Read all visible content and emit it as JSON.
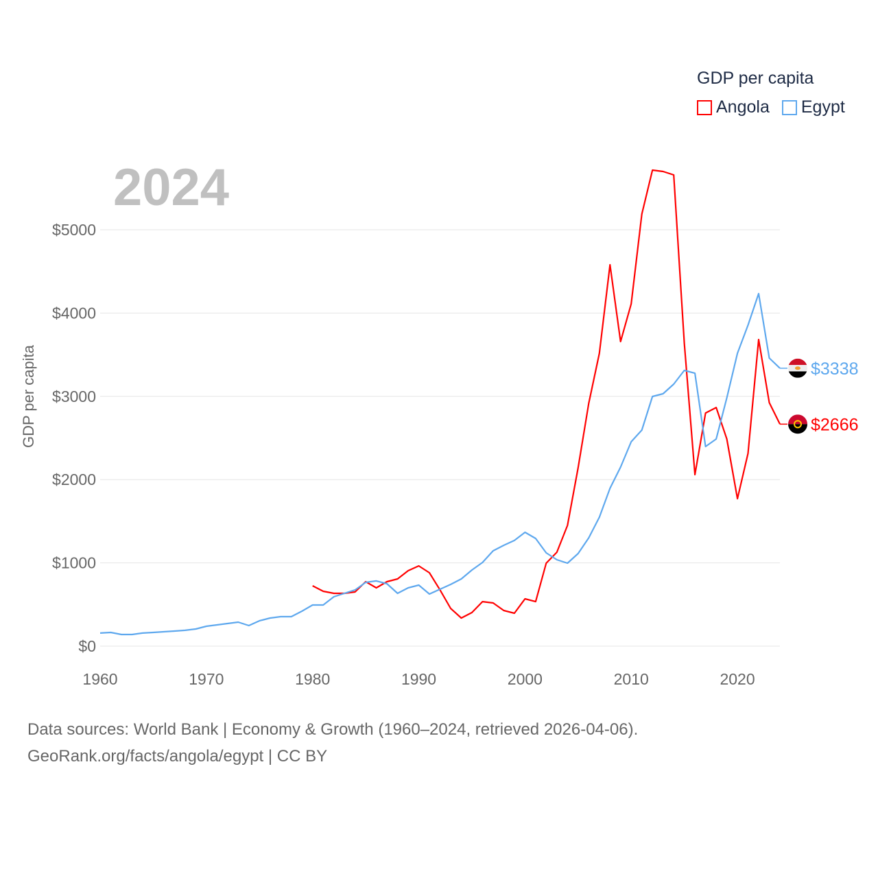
{
  "chart_data": {
    "type": "line",
    "title": "GDP per capita",
    "year_label": "2024",
    "ylabel": "GDP per capita",
    "xlabel": "",
    "xlim": [
      1960,
      2024
    ],
    "ylim": [
      0,
      5800
    ],
    "x_ticks": [
      1960,
      1970,
      1980,
      1990,
      2000,
      2010,
      2020
    ],
    "x_tick_labels": [
      "1960",
      "1970",
      "1980",
      "1990",
      "2000",
      "2010",
      "2020"
    ],
    "y_ticks": [
      0,
      1000,
      2000,
      3000,
      4000,
      5000
    ],
    "y_tick_labels": [
      "$0",
      "$1000",
      "$2000",
      "$3000",
      "$4000",
      "$5000"
    ],
    "grid": true,
    "legend_placement": "top-right",
    "series": [
      {
        "name": "Angola",
        "color": "#ff0000",
        "start_year": 1980,
        "end_label": "$2666",
        "flag": "angola-flag",
        "values": [
          725,
          659,
          634,
          634,
          651,
          774,
          700,
          774,
          807,
          906,
          964,
          881,
          675,
          453,
          338,
          404,
          535,
          519,
          428,
          395,
          568,
          535,
          997,
          1128,
          1450,
          2142,
          2916,
          3517,
          4580,
          3657,
          4110,
          5189,
          5717,
          5700,
          5659,
          3641,
          2059,
          2800,
          2866,
          2488,
          1771,
          2315,
          3682,
          2924,
          2666
        ]
      },
      {
        "name": "Egypt",
        "color": "#5ea8ee",
        "start_year": 1960,
        "end_label": "$3338",
        "flag": "egypt-flag",
        "values": [
          157,
          165,
          140,
          140,
          157,
          165,
          173,
          181,
          190,
          206,
          239,
          255,
          272,
          288,
          247,
          305,
          338,
          354,
          354,
          420,
          494,
          494,
          593,
          634,
          675,
          766,
          783,
          750,
          634,
          700,
          733,
          626,
          684,
          741,
          807,
          914,
          1005,
          1145,
          1211,
          1269,
          1367,
          1293,
          1120,
          1038,
          997,
          1112,
          1301,
          1549,
          1895,
          2150,
          2455,
          2595,
          2998,
          3031,
          3147,
          3311,
          3278,
          2397,
          2488,
          2982,
          3517,
          3855,
          4234,
          3460,
          3338
        ]
      }
    ]
  },
  "footer": {
    "line1": "Data sources: World Bank | Economy & Growth (1960–2024, retrieved 2026-04-06).",
    "line2": "GeoRank.org/facts/angola/egypt | CC BY"
  }
}
